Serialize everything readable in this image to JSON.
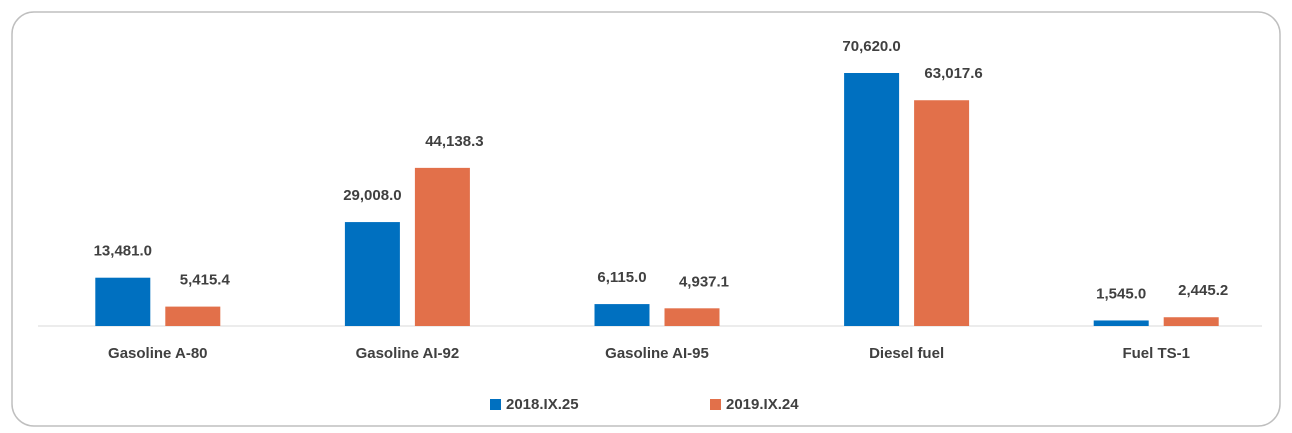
{
  "chart_data": {
    "type": "bar",
    "categories": [
      "Gasoline A-80",
      "Gasoline AI-92",
      "Gasoline AI-95",
      "Diesel fuel",
      "Fuel TS-1"
    ],
    "series": [
      {
        "name": "2018.IX.25",
        "color": "#0070c0",
        "values": [
          13481.0,
          29008.0,
          6115.0,
          70620.0,
          1545.0
        ],
        "value_labels": [
          "13,481.0",
          "29,008.0",
          "6,115.0",
          "70,620.0",
          "1,545.0"
        ]
      },
      {
        "name": "2019.IX.24",
        "color": "#e2704a",
        "values": [
          5415.4,
          44138.3,
          4937.1,
          63017.6,
          2445.2
        ],
        "value_labels": [
          "5,415.4",
          "44,138.3",
          "4,937.1",
          "63,017.6",
          "2,445.2"
        ]
      }
    ],
    "legend": "bottom"
  }
}
